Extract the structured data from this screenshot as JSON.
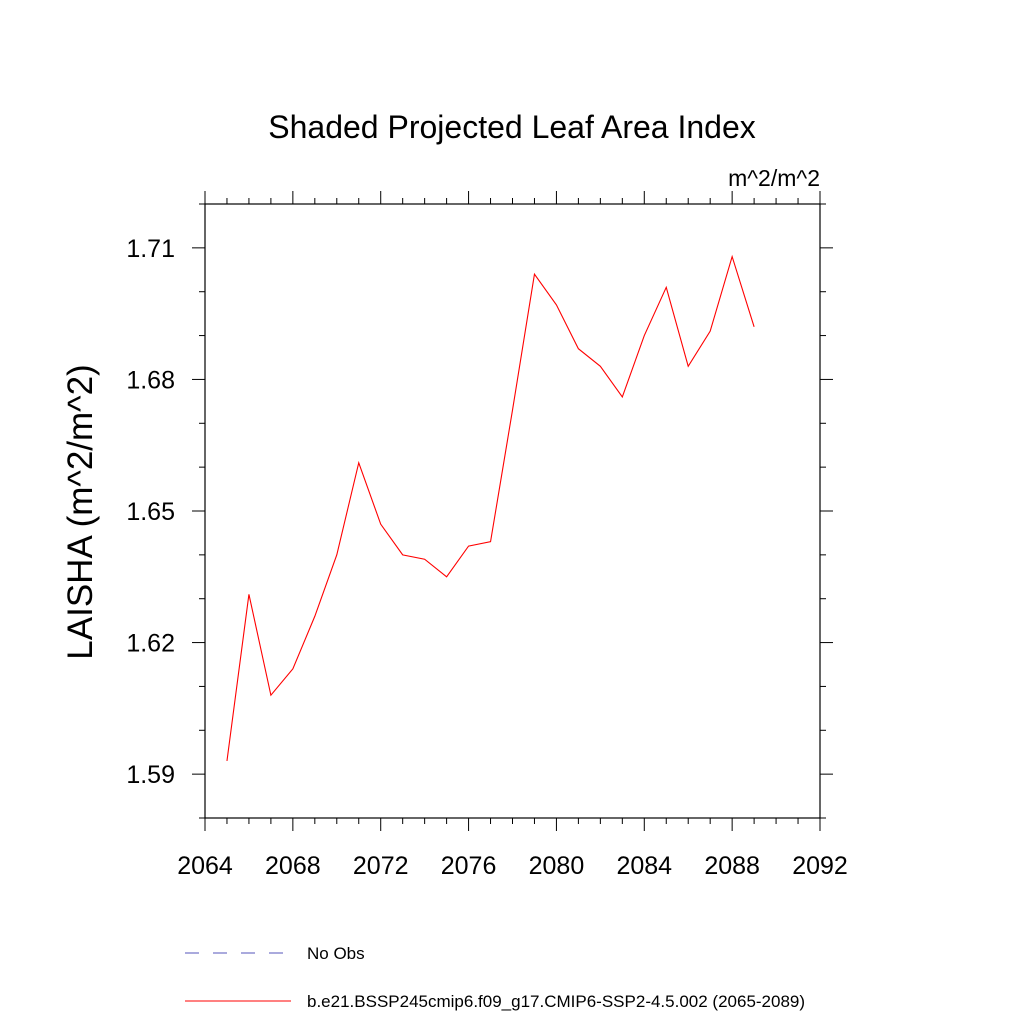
{
  "chart_data": {
    "type": "line",
    "title": "Shaded Projected Leaf Area Index",
    "units": "m^2/m^2",
    "ylabel": "LAISHA  (m^2/m^2)",
    "xlabel": "",
    "xlim": [
      2064,
      2092
    ],
    "ylim": [
      1.58,
      1.72
    ],
    "x_ticks": [
      2064,
      2068,
      2072,
      2076,
      2080,
      2084,
      2088,
      2092
    ],
    "y_ticks": [
      1.59,
      1.62,
      1.65,
      1.68,
      1.71
    ],
    "y_tick_labels": [
      "1.59",
      "1.62",
      "1.65",
      "1.68",
      "1.71"
    ],
    "grid": false,
    "series": [
      {
        "name": "b.e21.BSSP245cmip6.f09_g17.CMIP6-SSP2-4.5.002 (2065-2089)",
        "color": "#ff0000",
        "style": "solid",
        "x": [
          2065,
          2066,
          2067,
          2068,
          2069,
          2070,
          2071,
          2072,
          2073,
          2074,
          2075,
          2076,
          2077,
          2078,
          2079,
          2080,
          2081,
          2082,
          2083,
          2084,
          2085,
          2086,
          2087,
          2088,
          2089
        ],
        "values": [
          1.593,
          1.631,
          1.608,
          1.614,
          1.626,
          1.64,
          1.661,
          1.647,
          1.64,
          1.639,
          1.635,
          1.642,
          1.643,
          1.673,
          1.704,
          1.697,
          1.687,
          1.683,
          1.676,
          1.69,
          1.701,
          1.683,
          1.691,
          1.708,
          1.692
        ]
      }
    ],
    "legend": {
      "placement": "bottom",
      "entries": [
        {
          "label": "No Obs",
          "color": "#5555bb",
          "style": "dashed"
        },
        {
          "label": "b.e21.BSSP245cmip6.f09_g17.CMIP6-SSP2-4.5.002 (2065-2089)",
          "color": "#ff0000",
          "style": "solid"
        }
      ]
    }
  }
}
